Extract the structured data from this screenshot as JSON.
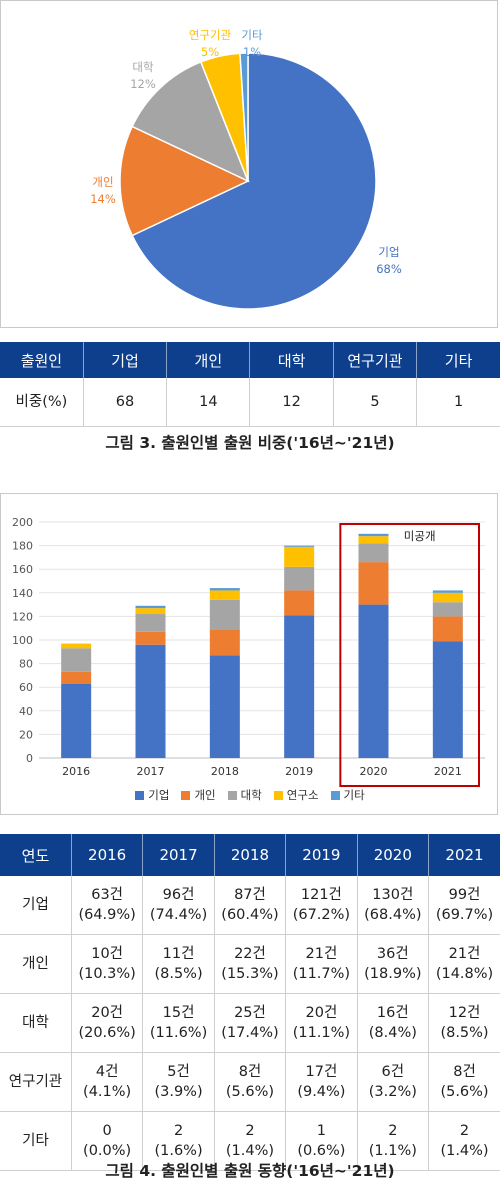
{
  "colors": {
    "기업": "#4472c4",
    "개인": "#ed7d31",
    "대학": "#a5a5a5",
    "연구기관": "#ffc000",
    "기타": "#5b9bd5",
    "highlight": "#c00000",
    "header": "#0d3f8c"
  },
  "chart_data": [
    {
      "type": "pie",
      "labels": [
        "기업",
        "개인",
        "대학",
        "연구기관",
        "기타"
      ],
      "values": [
        68,
        14,
        12,
        5,
        1
      ],
      "value_labels": [
        "68%",
        "14%",
        "12%",
        "5%",
        "1%"
      ]
    },
    {
      "type": "bar",
      "stacked": true,
      "categories": [
        "2016",
        "2017",
        "2018",
        "2019",
        "2020",
        "2021"
      ],
      "series": [
        {
          "name": "기업",
          "values": [
            63,
            96,
            87,
            121,
            130,
            99
          ]
        },
        {
          "name": "개인",
          "values": [
            10,
            11,
            22,
            21,
            36,
            21
          ]
        },
        {
          "name": "대학",
          "values": [
            20,
            15,
            25,
            20,
            16,
            12
          ]
        },
        {
          "name": "연구소",
          "values": [
            4,
            5,
            8,
            17,
            6,
            8
          ]
        },
        {
          "name": "기타",
          "values": [
            0,
            2,
            2,
            1,
            2,
            2
          ]
        }
      ],
      "ylim": [
        0,
        200
      ],
      "yticks": [
        "0",
        "20",
        "40",
        "60",
        "80",
        "100",
        "120",
        "140",
        "160",
        "180",
        "200"
      ],
      "grid": true,
      "legend": "bottom",
      "annotation": "미공개",
      "highlight_categories": [
        "2020",
        "2021"
      ]
    }
  ],
  "share_table": {
    "headers": [
      "출원인",
      "기업",
      "개인",
      "대학",
      "연구기관",
      "기타"
    ],
    "row": [
      "비중(%)",
      "68",
      "14",
      "12",
      "5",
      "1"
    ]
  },
  "caption1": "그림 3. 출원인별 출원 비중('16년~'21년)",
  "trend_table": {
    "headers": [
      "연도",
      "2016",
      "2017",
      "2018",
      "2019",
      "2020",
      "2021"
    ],
    "rows": [
      {
        "label": "기업",
        "cells": [
          [
            "63건",
            "(64.9%)"
          ],
          [
            "96건",
            "(74.4%)"
          ],
          [
            "87건",
            "(60.4%)"
          ],
          [
            "121건",
            "(67.2%)"
          ],
          [
            "130건",
            "(68.4%)"
          ],
          [
            "99건",
            "(69.7%)"
          ]
        ]
      },
      {
        "label": "개인",
        "cells": [
          [
            "10건",
            "(10.3%)"
          ],
          [
            "11건",
            "(8.5%)"
          ],
          [
            "22건",
            "(15.3%)"
          ],
          [
            "21건",
            "(11.7%)"
          ],
          [
            "36건",
            "(18.9%)"
          ],
          [
            "21건",
            "(14.8%)"
          ]
        ]
      },
      {
        "label": "대학",
        "cells": [
          [
            "20건",
            "(20.6%)"
          ],
          [
            "15건",
            "(11.6%)"
          ],
          [
            "25건",
            "(17.4%)"
          ],
          [
            "20건",
            "(11.1%)"
          ],
          [
            "16건",
            "(8.4%)"
          ],
          [
            "12건",
            "(8.5%)"
          ]
        ]
      },
      {
        "label": "연구기관",
        "cells": [
          [
            "4건",
            "(4.1%)"
          ],
          [
            "5건",
            "(3.9%)"
          ],
          [
            "8건",
            "(5.6%)"
          ],
          [
            "17건",
            "(9.4%)"
          ],
          [
            "6건",
            "(3.2%)"
          ],
          [
            "8건",
            "(5.6%)"
          ]
        ]
      },
      {
        "label": "기타",
        "cells": [
          [
            "0",
            "(0.0%)"
          ],
          [
            "2",
            "(1.6%)"
          ],
          [
            "2",
            "(1.4%)"
          ],
          [
            "1",
            "(0.6%)"
          ],
          [
            "2",
            "(1.1%)"
          ],
          [
            "2",
            "(1.4%)"
          ]
        ]
      }
    ]
  },
  "caption2": "그림 4. 출원인별 출원 동향('16년~'21년)"
}
